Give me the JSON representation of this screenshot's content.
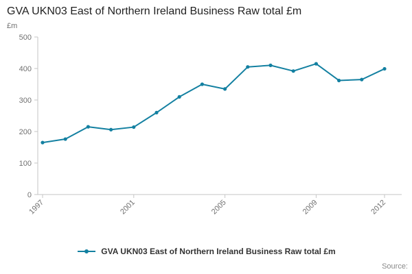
{
  "title": "GVA UKN03 East of Northern Ireland Business Raw total £m",
  "source_label": "Source:",
  "chart_data": {
    "type": "line",
    "title": "GVA UKN03 East of Northern Ireland Business Raw total £m",
    "xlabel": "",
    "ylabel": "£m",
    "x": [
      1997,
      1998,
      1999,
      2000,
      2001,
      2002,
      2003,
      2004,
      2005,
      2006,
      2007,
      2008,
      2009,
      2010,
      2011,
      2012
    ],
    "series": [
      {
        "name": "GVA UKN03 East of Northern Ireland Business Raw total £m",
        "values": [
          165,
          176,
          215,
          206,
          214,
          260,
          310,
          350,
          335,
          405,
          410,
          392,
          415,
          362,
          365,
          399
        ]
      }
    ],
    "ylim": [
      0,
      500
    ],
    "yticks": [
      0,
      100,
      200,
      300,
      400,
      500
    ],
    "xticks": [
      1997,
      2001,
      2005,
      2009,
      2012
    ],
    "grid": false,
    "legend_position": "bottom",
    "line_color": "#1380A1",
    "axis_color": "#c6c6c6",
    "tick_text_color": "#707070"
  }
}
